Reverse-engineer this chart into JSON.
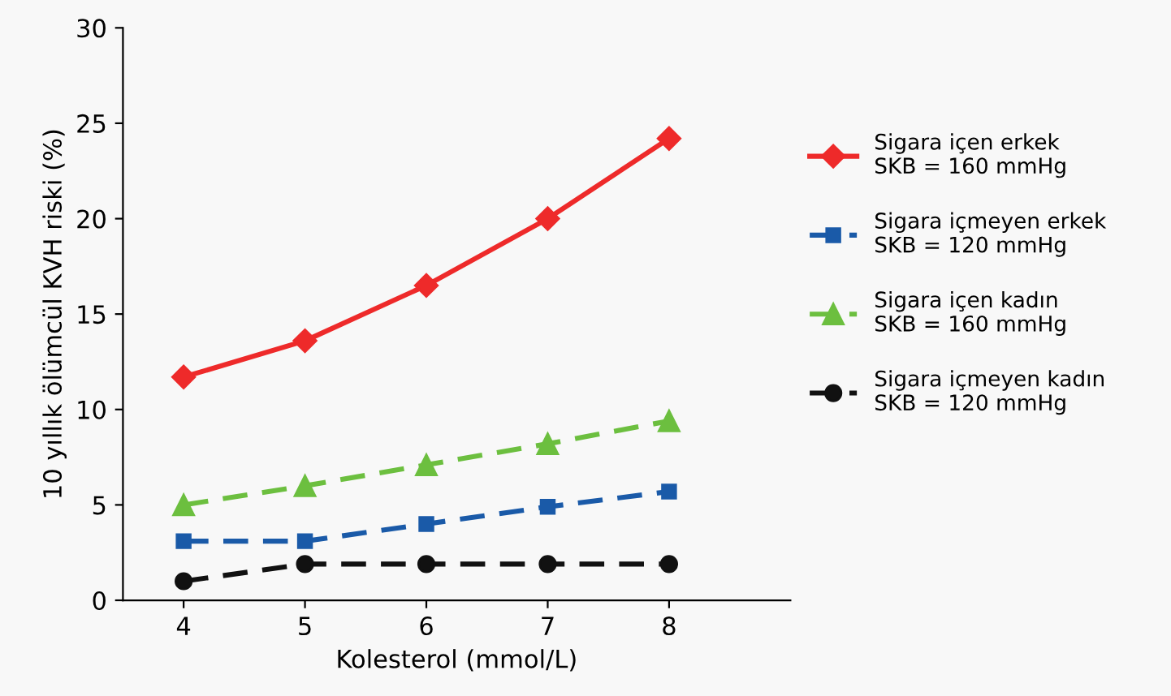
{
  "chart_data": {
    "type": "line",
    "xlabel": "Kolesterol (mmol/L)",
    "ylabel": "10 yıllık ölümcül KVH riski (%)",
    "x": [
      4,
      5,
      6,
      7,
      8
    ],
    "xlim": [
      3.5,
      9
    ],
    "xticks": [
      4,
      5,
      6,
      7,
      8
    ],
    "ylim": [
      0,
      30
    ],
    "yticks": [
      0,
      5,
      10,
      15,
      20,
      25,
      30
    ],
    "grid": false,
    "legend": "right",
    "series": [
      {
        "name": "Sigara içen erkek\nSKB = 160 mmHg",
        "color": "#ee2a2a",
        "marker": "diamond",
        "line_style": "solid",
        "values": [
          11.7,
          13.6,
          16.5,
          20.0,
          24.2
        ]
      },
      {
        "name": "Sigara içmeyen erkek\nSKB = 120 mmHg",
        "color": "#1a5aa8",
        "marker": "square",
        "line_style": "dashed",
        "values": [
          3.1,
          3.1,
          4.0,
          4.9,
          5.7
        ]
      },
      {
        "name": "Sigara içen kadın\nSKB = 160 mmHg",
        "color": "#6cbf3f",
        "marker": "triangle",
        "line_style": "dashed",
        "values": [
          5.0,
          6.0,
          7.1,
          8.2,
          9.4
        ]
      },
      {
        "name": "Sigara içmeyen kadın\nSKB = 120 mmHg",
        "color": "#111111",
        "marker": "circle",
        "line_style": "dashed",
        "values": [
          1.0,
          1.9,
          1.9,
          1.9,
          1.9
        ]
      }
    ]
  }
}
